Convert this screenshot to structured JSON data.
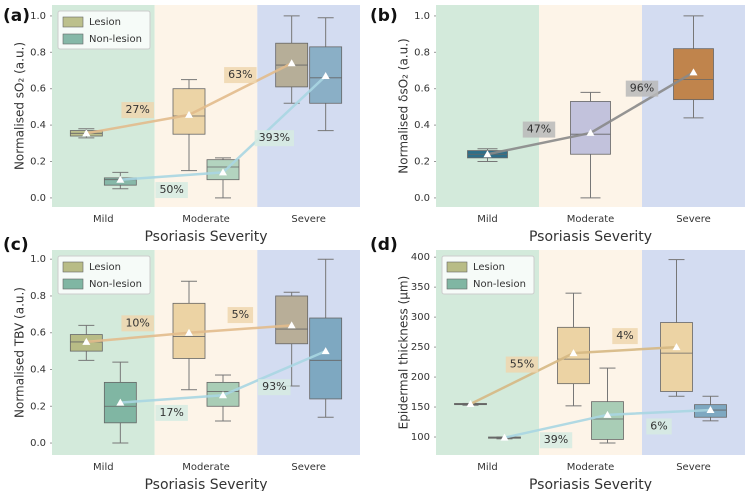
{
  "chart_data": [
    {
      "type": "box",
      "label": "(a)",
      "x_label": "Psoriasis Severity",
      "y_label": "Normalised sO₂ (a.u.)",
      "categories": [
        "Mild",
        "Moderate",
        "Severe"
      ],
      "band_colors": [
        "#d3eadb",
        "#fdf4e8",
        "#d3dcf1"
      ],
      "ylim": [
        -0.05,
        1.06
      ],
      "yticks": [
        {
          "value": 0,
          "label": "0.0"
        },
        0.2,
        0.4,
        0.6,
        0.8,
        {
          "value": 1,
          "label": "1.0"
        }
      ],
      "legend": "upper left",
      "series": [
        {
          "name": "Lesion",
          "color": "#bcc08c",
          "box_colors": [
            "#bcc08c",
            "#ecd4a6",
            "#b6ae98"
          ],
          "line_color": "#e2bb8c",
          "annotation_color": "#efd6ae",
          "min": [
            0.33,
            0.15,
            0.52
          ],
          "q1": [
            0.34,
            0.35,
            0.61
          ],
          "median": [
            0.355,
            0.45,
            0.73
          ],
          "q3": [
            0.37,
            0.6,
            0.85
          ],
          "max": [
            0.38,
            0.65,
            1.0
          ],
          "mean": [
            0.355,
            0.456,
            0.74
          ],
          "annotations": [
            "27%",
            "63%"
          ]
        },
        {
          "name": "Non-lesion",
          "color": "#86b8a8",
          "box_colors": [
            "#86b8a8",
            "#b3d4bf",
            "#8aafc6"
          ],
          "line_color": "#a9d6e2",
          "annotation_color": "#d6ebe2",
          "min": [
            0.05,
            0.0,
            0.37
          ],
          "q1": [
            0.07,
            0.1,
            0.52
          ],
          "median": [
            0.1,
            0.17,
            0.66
          ],
          "q3": [
            0.11,
            0.21,
            0.83
          ],
          "max": [
            0.14,
            0.22,
            0.99
          ],
          "mean": [
            0.1,
            0.14,
            0.67
          ],
          "annotations": [
            "50%",
            "393%"
          ]
        }
      ]
    },
    {
      "type": "box",
      "label": "(b)",
      "x_label": "Psoriasis Severity",
      "y_label": "Normalised δsO₂ (a.u.)",
      "categories": [
        "Mild",
        "Moderate",
        "Severe"
      ],
      "band_colors": [
        "#d3eadb",
        "#fdf4e8",
        "#d3dcf1"
      ],
      "ylim": [
        -0.05,
        1.06
      ],
      "yticks": [
        {
          "value": 0,
          "label": "0.0"
        },
        0.2,
        0.4,
        0.6,
        0.8,
        {
          "value": 1,
          "label": "1.0"
        }
      ],
      "series": [
        {
          "box_colors": [
            "#2f6f89",
            "#c2c2dc",
            "#c0844c"
          ],
          "line_color": "#8a8a8a",
          "annotation_color": "#b9b9b9",
          "min": [
            0.2,
            0.0,
            0.44
          ],
          "q1": [
            0.22,
            0.24,
            0.54
          ],
          "median": [
            0.24,
            0.35,
            0.65
          ],
          "q3": [
            0.26,
            0.53,
            0.82
          ],
          "max": [
            0.27,
            0.58,
            1.0
          ],
          "mean": [
            0.24,
            0.357,
            0.69
          ],
          "annotations": [
            "47%",
            "96%"
          ]
        }
      ]
    },
    {
      "type": "box",
      "label": "(c)",
      "x_label": "Psoriasis Severity",
      "y_label": "Normalised TBV (a.u.)",
      "categories": [
        "Mild",
        "Moderate",
        "Severe"
      ],
      "band_colors": [
        "#d3eadb",
        "#fdf4e8",
        "#d3dcf1"
      ],
      "ylim": [
        -0.065,
        1.05
      ],
      "yticks": [
        {
          "value": 0,
          "label": "0.0"
        },
        0.2,
        0.4,
        0.6,
        0.8,
        {
          "value": 1,
          "label": "1.0"
        }
      ],
      "legend": "upper left",
      "series": [
        {
          "name": "Lesion",
          "color": "#b8bc86",
          "box_colors": [
            "#b8bc86",
            "#ecd3a4",
            "#b8ae98"
          ],
          "line_color": "#e2bb8c",
          "annotation_color": "#efd6ae",
          "min": [
            0.45,
            0.29,
            0.31
          ],
          "q1": [
            0.5,
            0.46,
            0.54
          ],
          "median": [
            0.55,
            0.58,
            0.62
          ],
          "q3": [
            0.59,
            0.76,
            0.8
          ],
          "max": [
            0.64,
            0.88,
            0.82
          ],
          "mean": [
            0.55,
            0.6,
            0.64
          ],
          "annotations": [
            "10%",
            "5%"
          ]
        },
        {
          "name": "Non-lesion",
          "color": "#80b6a3",
          "box_colors": [
            "#80b6a3",
            "#a9cdb6",
            "#7ea8c1"
          ],
          "line_color": "#a9d6e2",
          "annotation_color": "#d6ebe2",
          "min": [
            0.0,
            0.12,
            0.14
          ],
          "q1": [
            0.11,
            0.2,
            0.24
          ],
          "median": [
            0.2,
            0.28,
            0.45
          ],
          "q3": [
            0.33,
            0.33,
            0.68
          ],
          "max": [
            0.44,
            0.37,
            1.0
          ],
          "mean": [
            0.22,
            0.26,
            0.5
          ],
          "annotations": [
            "17%",
            "93%"
          ]
        }
      ]
    },
    {
      "type": "box",
      "label": "(d)",
      "x_label": "Psoriasis Severity",
      "y_label": "Epidermal thickness (μm)",
      "categories": [
        "Mild",
        "Moderate",
        "Severe"
      ],
      "band_colors": [
        "#d3eadb",
        "#fdf4e8",
        "#d3dcf1"
      ],
      "ylim": [
        70,
        412
      ],
      "yticks": [
        100,
        150,
        200,
        250,
        300,
        350,
        400
      ],
      "legend": "upper left",
      "series": [
        {
          "name": "Lesion",
          "color": "#b8bc86",
          "box_colors": [
            "#b8bc86",
            "#ecd3a4",
            "#ecd3a4"
          ],
          "line_color": "#d6b883",
          "annotation_color": "#efd6ae",
          "min": [
            153,
            152,
            168
          ],
          "q1": [
            154,
            189,
            176
          ],
          "median": [
            155,
            230,
            240
          ],
          "q3": [
            156,
            283,
            291
          ],
          "max": [
            156,
            340,
            396
          ],
          "mean": [
            155,
            240,
            250
          ],
          "annotations": [
            "55%",
            "4%"
          ]
        },
        {
          "name": "Non-lesion",
          "color": "#80b6a3",
          "box_colors": [
            "#80b6a3",
            "#a9cdb6",
            "#7ea8c1"
          ],
          "line_color": "#a9d6e2",
          "annotation_color": "#d6ebe2",
          "min": [
            97,
            90,
            127
          ],
          "q1": [
            98,
            96,
            133
          ],
          "median": [
            99,
            130,
            145
          ],
          "q3": [
            100,
            159,
            154
          ],
          "max": [
            100,
            215,
            168
          ],
          "mean": [
            99,
            137,
            145
          ],
          "annotations": [
            "39%",
            "6%"
          ]
        }
      ]
    }
  ]
}
